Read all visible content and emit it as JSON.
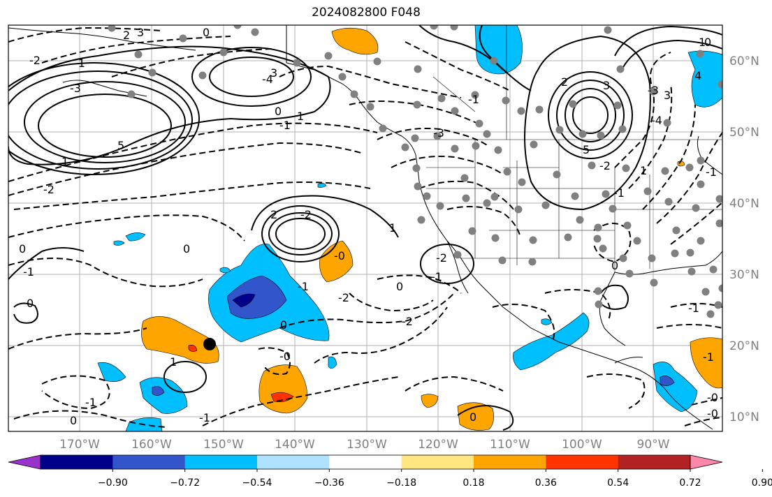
{
  "title": "2024082800 F048",
  "lat_labels": [
    "60°N",
    "50°N",
    "40°N",
    "30°N",
    "20°N",
    "10°N"
  ],
  "lon_labels": [
    "170°W",
    "160°W",
    "150°W",
    "140°W",
    "130°W",
    "120°W",
    "110°W",
    "100°W",
    "90°W"
  ],
  "colorbar": {
    "ticks": [
      "−0.90",
      "−0.72",
      "−0.54",
      "−0.36",
      "−0.18",
      "0.18",
      "0.36",
      "0.54",
      "0.72",
      "0.90"
    ],
    "colors": [
      "#9932cc",
      "#00008b",
      "#3355cc",
      "#00bfff",
      "#aee2ff",
      "#ffffff",
      "#ffe680",
      "#ffa500",
      "#ff3300",
      "#b22222",
      "#ff88aa"
    ]
  },
  "contour_labels": [
    "2",
    "3",
    "0",
    "-2",
    "-1",
    "-3",
    "-4",
    "3",
    "5",
    "1",
    "0",
    "-1",
    "1",
    "-2",
    "-3",
    "-1",
    "0",
    "2",
    "-2",
    "1",
    "-1",
    "-2",
    "0",
    "-0",
    "0",
    "-1",
    "-1",
    "-2",
    "0",
    "-2",
    "0",
    "-0",
    "1",
    "-1",
    "-1",
    "0",
    "0",
    "3",
    "-2",
    "-1",
    "5",
    "3",
    "1",
    "0",
    "-3",
    "-4",
    "4",
    "-1",
    "1",
    "2",
    "0",
    "-1",
    "-0",
    "-1",
    "-0"
  ],
  "fill_colors": {
    "orange": "#ffa500",
    "light_blue": "#00bfff",
    "mid_blue": "#3355cc",
    "dark_blue": "#00008b",
    "red": "#ff3300",
    "marker_gray": "#808080"
  }
}
